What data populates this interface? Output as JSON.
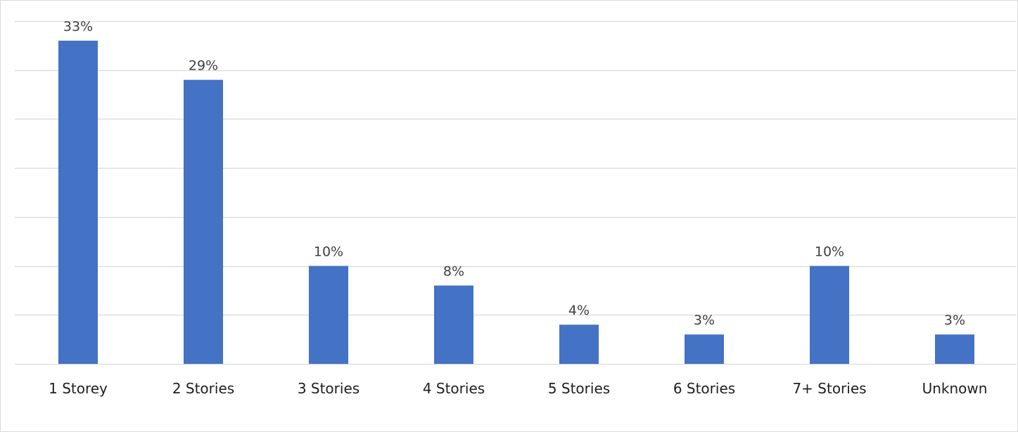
{
  "chart_data": {
    "type": "bar",
    "title": "",
    "xlabel": "",
    "ylabel": "",
    "categories": [
      "1 Storey",
      "2 Stories",
      "3 Stories",
      "4 Stories",
      "5 Stories",
      "6 Stories",
      "7+ Stories",
      "Unknown"
    ],
    "values": [
      33,
      29,
      10,
      8,
      4,
      3,
      10,
      3
    ],
    "value_labels": [
      "33%",
      "29%",
      "10%",
      "8%",
      "4%",
      "3%",
      "10%",
      "3%"
    ],
    "unit": "%",
    "ylim": [
      0,
      35
    ],
    "grid": true,
    "y_tick_labels_visible": false,
    "legend": "none",
    "colors": {
      "bar": "#4472c4",
      "grid": "#d9d9d9",
      "label": "#404040",
      "axis_text": "#202020"
    }
  }
}
